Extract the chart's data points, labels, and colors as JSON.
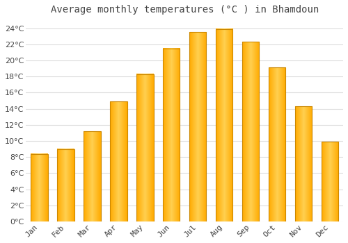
{
  "title": "Average monthly temperatures (°C ) in Bhamdoun",
  "months": [
    "Jan",
    "Feb",
    "Mar",
    "Apr",
    "May",
    "Jun",
    "Jul",
    "Aug",
    "Sep",
    "Oct",
    "Nov",
    "Dec"
  ],
  "values": [
    8.4,
    9.0,
    11.2,
    14.9,
    18.3,
    21.5,
    23.5,
    23.9,
    22.3,
    19.1,
    14.3,
    9.9
  ],
  "bar_color": "#FFAA00",
  "bar_color_light": "#FFD050",
  "bar_edge_color": "#CC8800",
  "background_color": "#FFFFFF",
  "plot_bg_color": "#FFFFFF",
  "grid_color": "#DDDDDD",
  "text_color": "#444444",
  "ylim": [
    0,
    25
  ],
  "yticks": [
    0,
    2,
    4,
    6,
    8,
    10,
    12,
    14,
    16,
    18,
    20,
    22,
    24
  ],
  "title_fontsize": 10,
  "tick_fontsize": 8,
  "bar_width": 0.65
}
